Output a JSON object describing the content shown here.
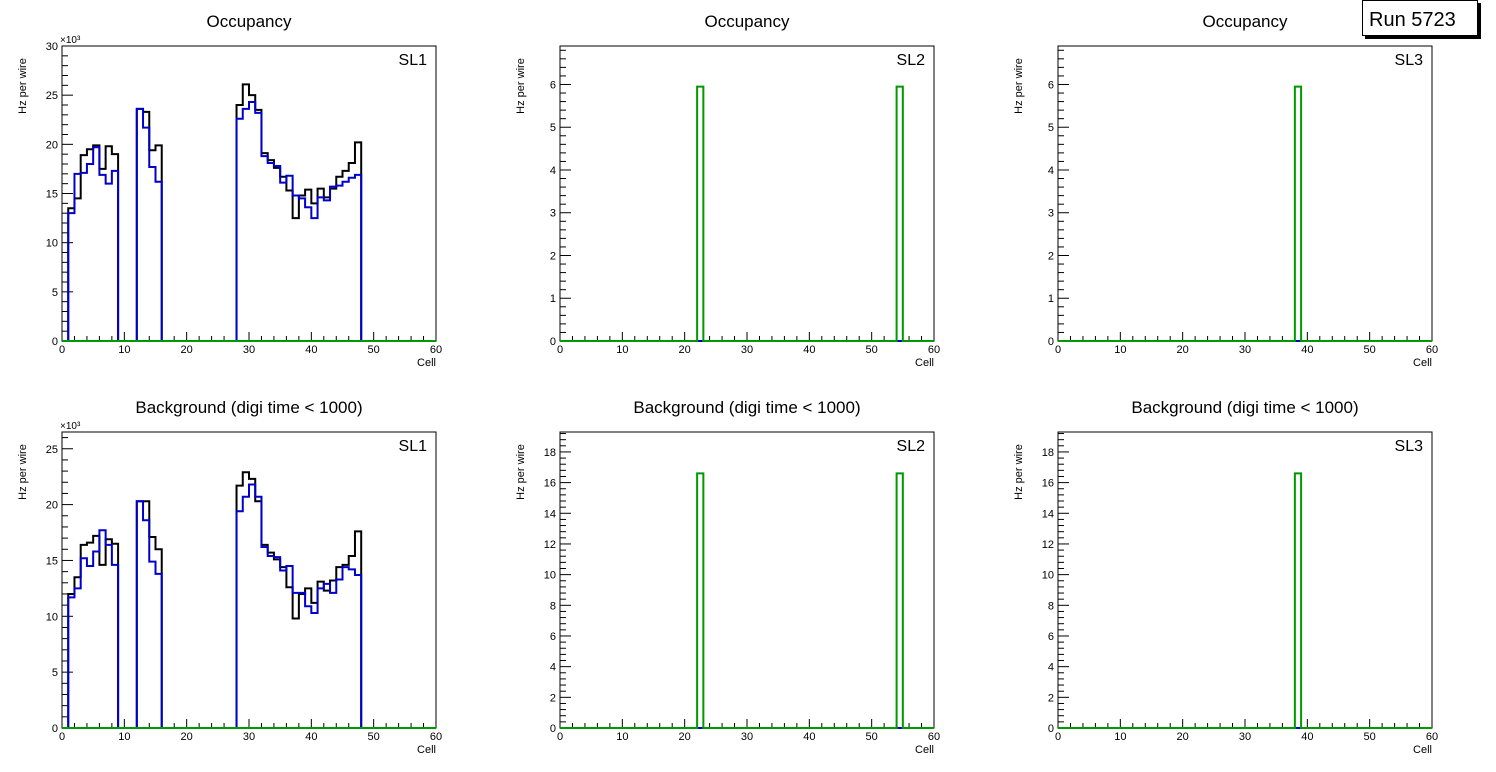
{
  "run_label": "Run 5723",
  "colors": {
    "total": "#000000",
    "series2": "#0000cc",
    "series3": "#009900",
    "axis": "#000000"
  },
  "chart_data": [
    {
      "type": "histogram",
      "title": "Occupancy",
      "xlabel": "Cell",
      "ylabel": "Hz per wire",
      "label": "SL1",
      "multiplier": "×10³",
      "xlim": [
        0,
        60
      ],
      "ylim": [
        0,
        30
      ],
      "xticks": [
        "0",
        "10",
        "20",
        "30",
        "40",
        "50",
        "60"
      ],
      "yticks": [
        "0",
        "5",
        "10",
        "15",
        "20",
        "25",
        "30"
      ],
      "series": [
        {
          "color": "#000000",
          "values": [
            0,
            13.5,
            14.5,
            18.9,
            19.5,
            19.9,
            17.5,
            19.8,
            19,
            0,
            0,
            0,
            23.6,
            23.3,
            19.4,
            19.9,
            0,
            0,
            0,
            0,
            0,
            0,
            0,
            0,
            0,
            0,
            0,
            0,
            24,
            26.1,
            25,
            23.5,
            19.1,
            18.4,
            17.6,
            16.7,
            15.3,
            12.5,
            14.8,
            15.4,
            14,
            15.5,
            14.6,
            15.5,
            16.7,
            17.3,
            18.1,
            20.2,
            0,
            0,
            0,
            0,
            0,
            0,
            0,
            0,
            0,
            0,
            0,
            0
          ]
        },
        {
          "color": "#0000cc",
          "values": [
            0,
            13,
            17,
            17.1,
            18,
            19.7,
            16.9,
            16,
            17.3,
            0,
            0,
            0,
            23.6,
            21.7,
            17.7,
            16.2,
            0,
            0,
            0,
            0,
            0,
            0,
            0,
            0,
            0,
            0,
            0,
            0,
            22.6,
            23.6,
            24.3,
            23.2,
            18.8,
            18.1,
            17.8,
            16.1,
            16.8,
            14.8,
            14.5,
            13.6,
            12.5,
            14.6,
            14.3,
            15.7,
            15.8,
            16.2,
            16.6,
            16.9,
            0,
            0,
            0,
            0,
            0,
            0,
            0,
            0,
            0,
            0,
            0,
            0
          ]
        },
        {
          "color": "#009900",
          "values": [
            0,
            0,
            0,
            0,
            0,
            0,
            0,
            0,
            0,
            0,
            0,
            0,
            0,
            0,
            0,
            0,
            0,
            0,
            0,
            0,
            0,
            0,
            0,
            0,
            0,
            0,
            0,
            0,
            0,
            0,
            0,
            0,
            0,
            0,
            0,
            0,
            0,
            0,
            0,
            0,
            0,
            0,
            0,
            0,
            0,
            0,
            0,
            0,
            0,
            0,
            0,
            0,
            0,
            0,
            0,
            0,
            0,
            0,
            0,
            0
          ]
        }
      ]
    },
    {
      "type": "histogram",
      "title": "Occupancy",
      "xlabel": "Cell",
      "ylabel": "Hz per wire",
      "label": "SL2",
      "multiplier": "",
      "xlim": [
        0,
        60
      ],
      "ylim": [
        0,
        6.9
      ],
      "xticks": [
        "0",
        "10",
        "20",
        "30",
        "40",
        "50",
        "60"
      ],
      "yticks": [
        "0",
        "1",
        "2",
        "3",
        "4",
        "5",
        "6"
      ],
      "series": [
        {
          "color": "#0000cc",
          "values": [
            0,
            0,
            0,
            0,
            0,
            0,
            0,
            0,
            0,
            0,
            0,
            0,
            0,
            0,
            0,
            0,
            0,
            0,
            0,
            0,
            0,
            0,
            0,
            0,
            0,
            0,
            0,
            0,
            0,
            0,
            0,
            0,
            0,
            0,
            0,
            0,
            0,
            0,
            0,
            0,
            0,
            0,
            0,
            0,
            0,
            0,
            0,
            0,
            0,
            0,
            0,
            0,
            0,
            0,
            0,
            0,
            0,
            0,
            0,
            0
          ]
        },
        {
          "color": "#009900",
          "values": [
            0,
            0,
            0,
            0,
            0,
            0,
            0,
            0,
            0,
            0,
            0,
            0,
            0,
            0,
            0,
            0,
            0,
            0,
            0,
            0,
            0,
            0,
            5.95,
            0,
            0,
            0,
            0,
            0,
            0,
            0,
            0,
            0,
            0,
            0,
            0,
            0,
            0,
            0,
            0,
            0,
            0,
            0,
            0,
            0,
            0,
            0,
            0,
            0,
            0,
            0,
            0,
            0,
            0,
            0,
            5.95,
            0,
            0,
            0,
            0,
            0
          ]
        }
      ]
    },
    {
      "type": "histogram",
      "title": "Occupancy",
      "xlabel": "Cell",
      "ylabel": "Hz per wire",
      "label": "SL3",
      "multiplier": "",
      "xlim": [
        0,
        60
      ],
      "ylim": [
        0,
        6.9
      ],
      "xticks": [
        "0",
        "10",
        "20",
        "30",
        "40",
        "50",
        "60"
      ],
      "yticks": [
        "0",
        "1",
        "2",
        "3",
        "4",
        "5",
        "6"
      ],
      "series": [
        {
          "color": "#0000cc",
          "values": [
            0,
            0,
            0,
            0,
            0,
            0,
            0,
            0,
            0,
            0,
            0,
            0,
            0,
            0,
            0,
            0,
            0,
            0,
            0,
            0,
            0,
            0,
            0,
            0,
            0,
            0,
            0,
            0,
            0,
            0,
            0,
            0,
            0,
            0,
            0,
            0,
            0,
            0,
            0,
            0,
            0,
            0,
            0,
            0,
            0,
            0,
            0,
            0,
            0,
            0,
            0,
            0,
            0,
            0,
            0,
            0,
            0,
            0,
            0,
            0
          ]
        },
        {
          "color": "#009900",
          "values": [
            0,
            0,
            0,
            0,
            0,
            0,
            0,
            0,
            0,
            0,
            0,
            0,
            0,
            0,
            0,
            0,
            0,
            0,
            0,
            0,
            0,
            0,
            0,
            0,
            0,
            0,
            0,
            0,
            0,
            0,
            0,
            0,
            0,
            0,
            0,
            0,
            0,
            0,
            5.95,
            0,
            0,
            0,
            0,
            0,
            0,
            0,
            0,
            0,
            0,
            0,
            0,
            0,
            0,
            0,
            0,
            0,
            0,
            0,
            0,
            0
          ]
        }
      ]
    },
    {
      "type": "histogram",
      "title": "Background (digi time < 1000)",
      "xlabel": "Cell",
      "ylabel": "Hz per wire",
      "label": "SL1",
      "multiplier": "×10³",
      "xlim": [
        0,
        60
      ],
      "ylim": [
        0,
        26.5
      ],
      "xticks": [
        "0",
        "10",
        "20",
        "30",
        "40",
        "50",
        "60"
      ],
      "yticks": [
        "0",
        "5",
        "10",
        "15",
        "20",
        "25"
      ],
      "series": [
        {
          "color": "#000000",
          "values": [
            0,
            12,
            13.5,
            16.4,
            16.6,
            17.2,
            14.6,
            16.9,
            16.5,
            0,
            0,
            0,
            20.3,
            20.3,
            17.1,
            16,
            0,
            0,
            0,
            0,
            0,
            0,
            0,
            0,
            0,
            0,
            0,
            0,
            21.7,
            22.9,
            22.3,
            20.3,
            16.4,
            15.7,
            15.1,
            14.4,
            12.6,
            9.8,
            12,
            12.5,
            11.2,
            13.1,
            12.3,
            13.2,
            14.4,
            14.6,
            15.4,
            17.6,
            0,
            0,
            0,
            0,
            0,
            0,
            0,
            0,
            0,
            0,
            0,
            0
          ]
        },
        {
          "color": "#0000cc",
          "values": [
            0,
            11.7,
            12.5,
            15.2,
            14.5,
            15.8,
            17.7,
            16.4,
            14.6,
            0,
            0,
            0,
            20.3,
            18.6,
            14.9,
            13.8,
            0,
            0,
            0,
            0,
            0,
            0,
            0,
            0,
            0,
            0,
            0,
            0,
            19.4,
            20.7,
            21.8,
            20.7,
            16.2,
            15.4,
            15.3,
            14.1,
            14.5,
            12.1,
            12.1,
            10.9,
            10.3,
            12.5,
            12.9,
            12.1,
            13.3,
            14.4,
            14.2,
            13.7,
            0,
            0,
            0,
            0,
            0,
            0,
            0,
            0,
            0,
            0,
            0,
            0
          ]
        },
        {
          "color": "#009900",
          "values": [
            0,
            0,
            0,
            0,
            0,
            0,
            0,
            0,
            0,
            0,
            0,
            0,
            0,
            0,
            0,
            0,
            0,
            0,
            0,
            0,
            0,
            0,
            0,
            0,
            0,
            0,
            0,
            0,
            0,
            0,
            0,
            0,
            0,
            0,
            0,
            0,
            0,
            0,
            0,
            0,
            0,
            0,
            0,
            0,
            0,
            0,
            0,
            0,
            0,
            0,
            0,
            0,
            0,
            0,
            0,
            0,
            0,
            0,
            0,
            0
          ]
        }
      ]
    },
    {
      "type": "histogram",
      "title": "Background (digi time < 1000)",
      "xlabel": "Cell",
      "ylabel": "Hz per wire",
      "label": "SL2",
      "multiplier": "",
      "xlim": [
        0,
        60
      ],
      "ylim": [
        0,
        19.3
      ],
      "xticks": [
        "0",
        "10",
        "20",
        "30",
        "40",
        "50",
        "60"
      ],
      "yticks": [
        "0",
        "2",
        "4",
        "6",
        "8",
        "10",
        "12",
        "14",
        "16",
        "18"
      ],
      "series": [
        {
          "color": "#0000cc",
          "values": [
            0,
            0,
            0,
            0,
            0,
            0,
            0,
            0,
            0,
            0,
            0,
            0,
            0,
            0,
            0,
            0,
            0,
            0,
            0,
            0,
            0,
            0,
            0,
            0,
            0,
            0,
            0,
            0,
            0,
            0,
            0,
            0,
            0,
            0,
            0,
            0,
            0,
            0,
            0,
            0,
            0,
            0,
            0,
            0,
            0,
            0,
            0,
            0,
            0,
            0,
            0,
            0,
            0,
            0,
            0,
            0,
            0,
            0,
            0,
            0
          ]
        },
        {
          "color": "#009900",
          "values": [
            0,
            0,
            0,
            0,
            0,
            0,
            0,
            0,
            0,
            0,
            0,
            0,
            0,
            0,
            0,
            0,
            0,
            0,
            0,
            0,
            0,
            0,
            16.6,
            0,
            0,
            0,
            0,
            0,
            0,
            0,
            0,
            0,
            0,
            0,
            0,
            0,
            0,
            0,
            0,
            0,
            0,
            0,
            0,
            0,
            0,
            0,
            0,
            0,
            0,
            0,
            0,
            0,
            0,
            0,
            16.6,
            0,
            0,
            0,
            0,
            0
          ]
        }
      ]
    },
    {
      "type": "histogram",
      "title": "Background (digi time < 1000)",
      "xlabel": "Cell",
      "ylabel": "Hz per wire",
      "label": "SL3",
      "multiplier": "",
      "xlim": [
        0,
        60
      ],
      "ylim": [
        0,
        19.3
      ],
      "xticks": [
        "0",
        "10",
        "20",
        "30",
        "40",
        "50",
        "60"
      ],
      "yticks": [
        "0",
        "2",
        "4",
        "6",
        "8",
        "10",
        "12",
        "14",
        "16",
        "18"
      ],
      "series": [
        {
          "color": "#0000cc",
          "values": [
            0,
            0,
            0,
            0,
            0,
            0,
            0,
            0,
            0,
            0,
            0,
            0,
            0,
            0,
            0,
            0,
            0,
            0,
            0,
            0,
            0,
            0,
            0,
            0,
            0,
            0,
            0,
            0,
            0,
            0,
            0,
            0,
            0,
            0,
            0,
            0,
            0,
            0,
            0,
            0,
            0,
            0,
            0,
            0,
            0,
            0,
            0,
            0,
            0,
            0,
            0,
            0,
            0,
            0,
            0,
            0,
            0,
            0,
            0,
            0
          ]
        },
        {
          "color": "#009900",
          "values": [
            0,
            0,
            0,
            0,
            0,
            0,
            0,
            0,
            0,
            0,
            0,
            0,
            0,
            0,
            0,
            0,
            0,
            0,
            0,
            0,
            0,
            0,
            0,
            0,
            0,
            0,
            0,
            0,
            0,
            0,
            0,
            0,
            0,
            0,
            0,
            0,
            0,
            0,
            16.6,
            0,
            0,
            0,
            0,
            0,
            0,
            0,
            0,
            0,
            0,
            0,
            0,
            0,
            0,
            0,
            0,
            0,
            0,
            0,
            0,
            0
          ]
        }
      ]
    }
  ]
}
